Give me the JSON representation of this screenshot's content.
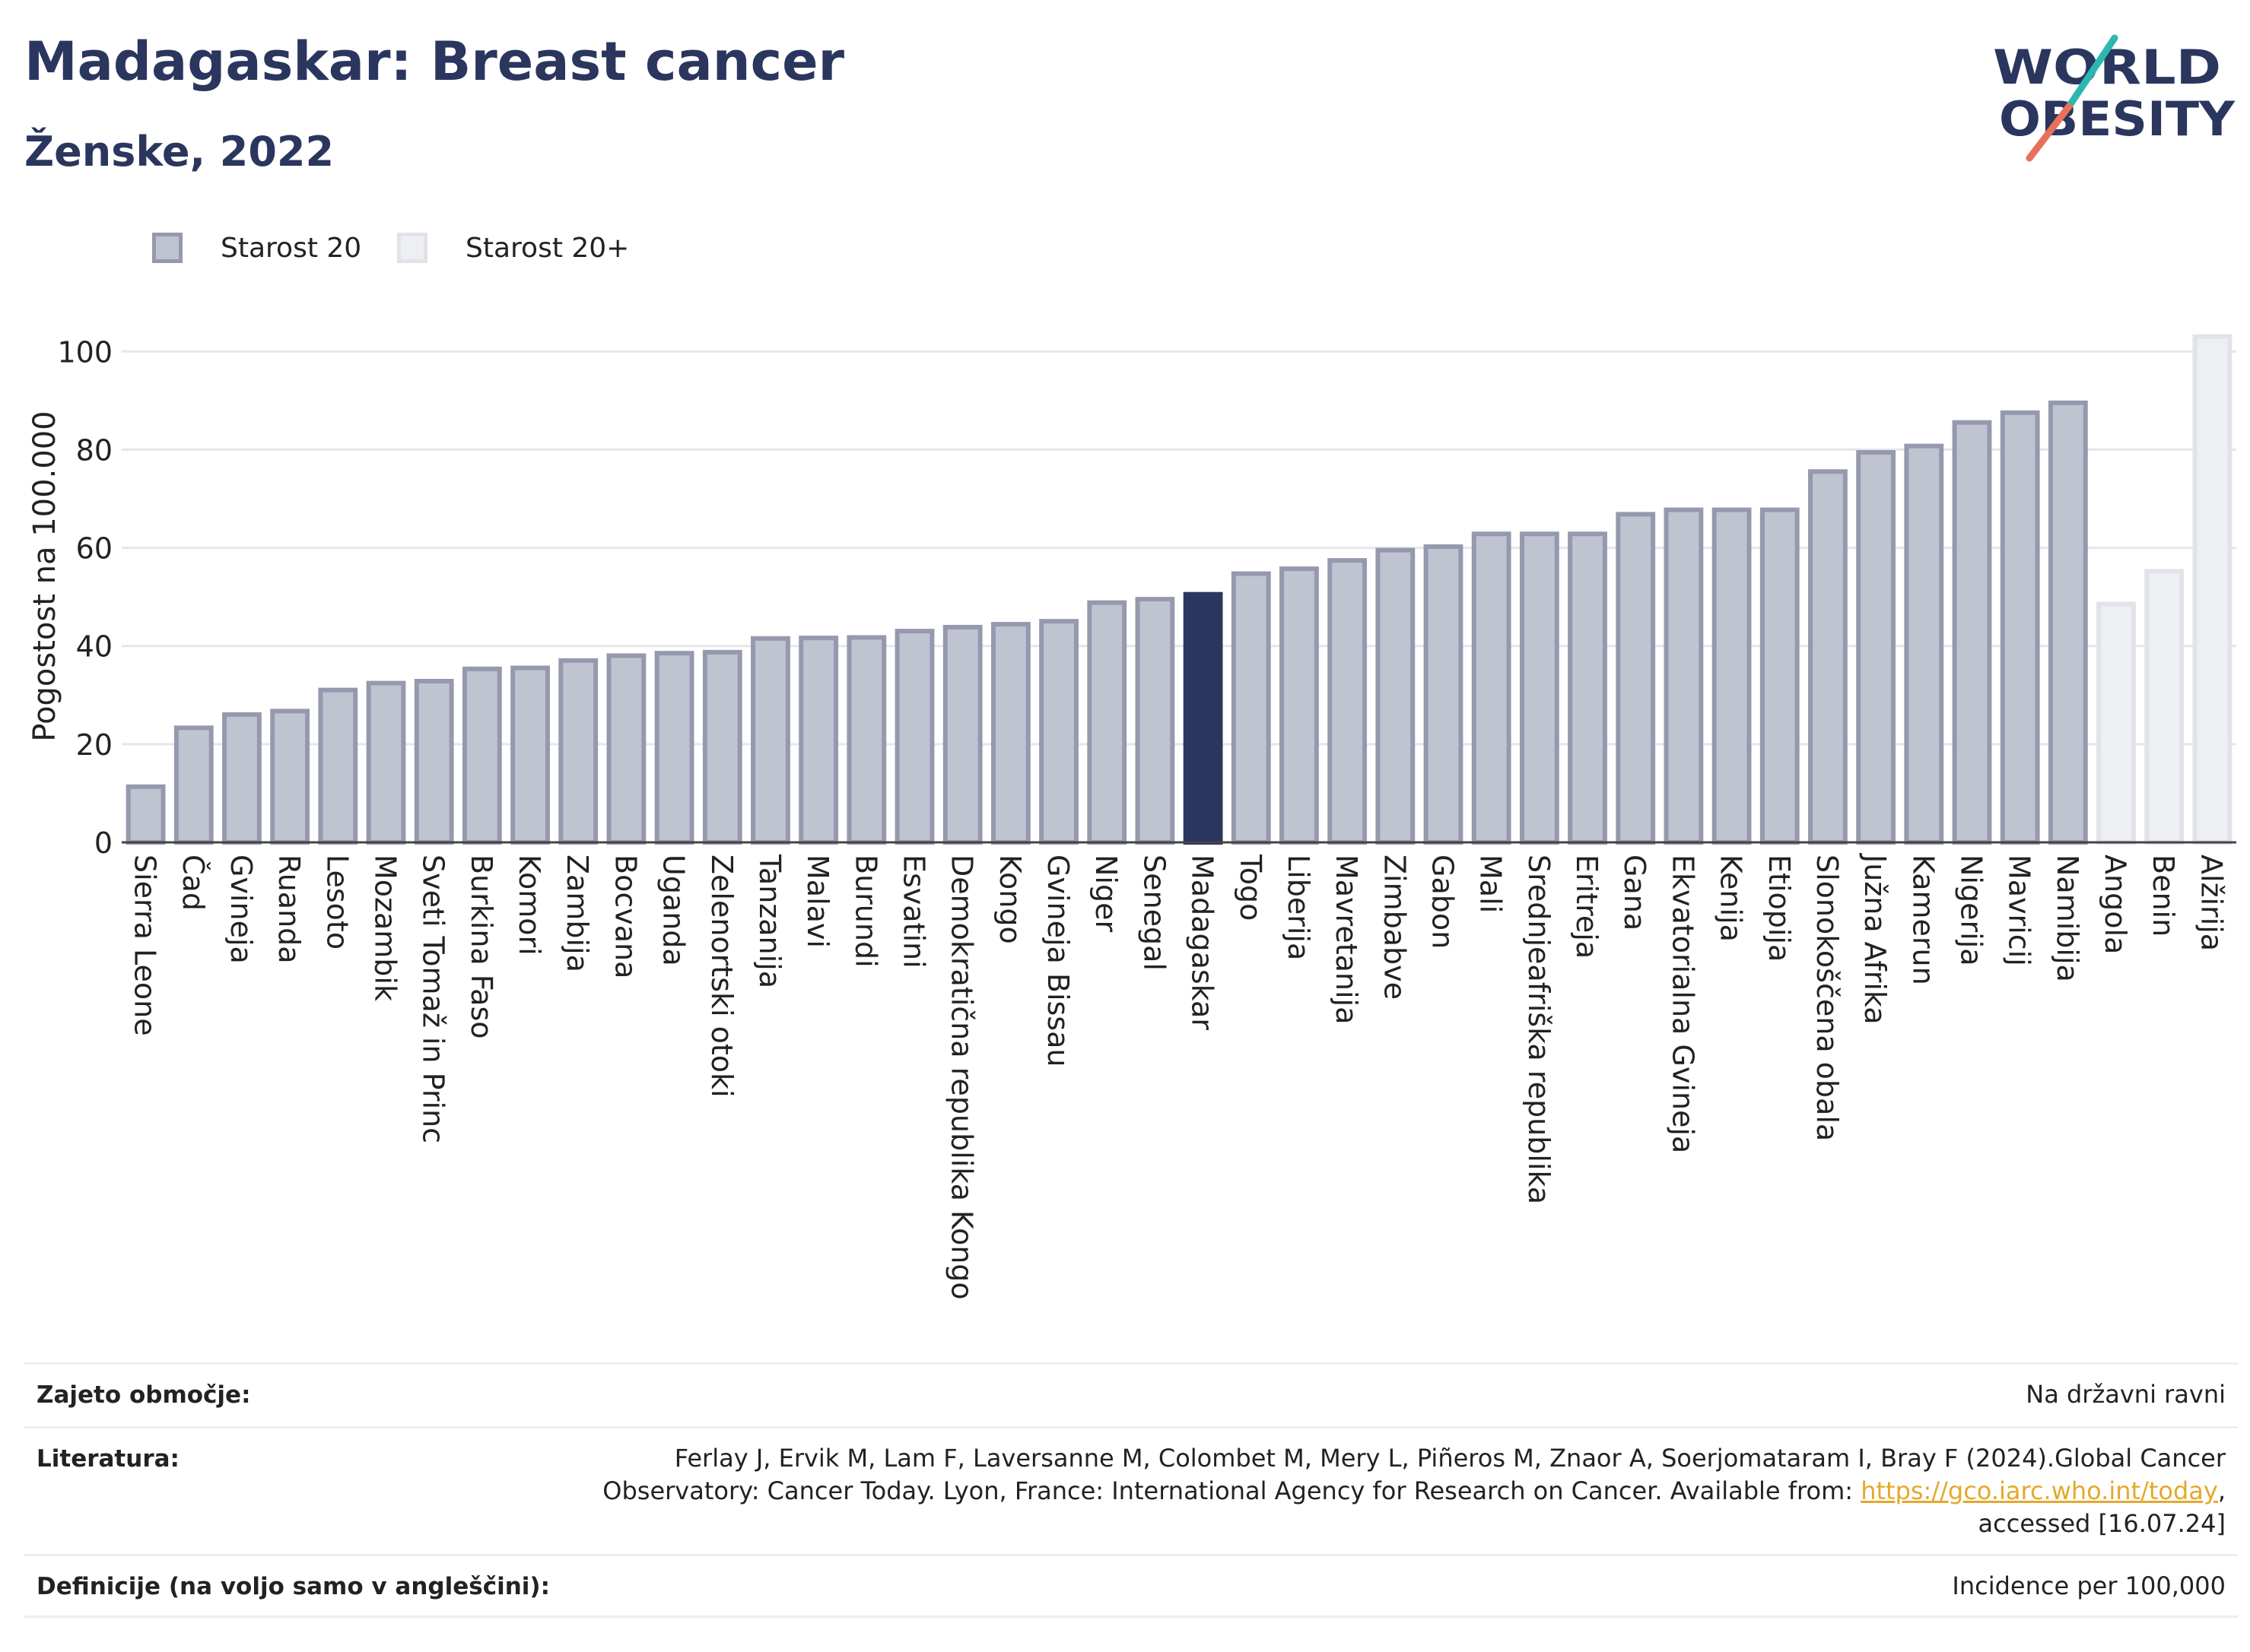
{
  "header": {
    "title": "Madagaskar: Breast cancer",
    "subtitle": "Ženske, 2022"
  },
  "logo": {
    "line1": "WORLD",
    "line2": "OBESITY",
    "accent_teal": "#2bb8b0",
    "accent_coral": "#e8715a",
    "text_color": "#2b365e"
  },
  "legend": {
    "items": [
      "Starost 20",
      "Starost 20+"
    ]
  },
  "colors": {
    "bar_fill": "#c0c3d0",
    "bar_stroke": "#9699ae",
    "highlight_fill": "#2b365e",
    "light_fill": "#eeeff3",
    "light_stroke": "#e2e3e9",
    "grid": "#e6e6ea"
  },
  "chart_data": {
    "type": "bar",
    "ylabel": "Pogostost na 100.000",
    "xlabel": "",
    "ylim": [
      0,
      105
    ],
    "yticks": [
      0,
      20,
      40,
      60,
      80,
      100
    ],
    "grid": true,
    "legend_position": "top-left",
    "highlight": "Madagaskar",
    "categories": [
      "Sierra Leone",
      "Čad",
      "Gvineja",
      "Ruanda",
      "Lesoto",
      "Mozambik",
      "Sveti Tomaž in Princ",
      "Burkina Faso",
      "Komori",
      "Zambija",
      "Bocvana",
      "Uganda",
      "Zelenortski otoki",
      "Tanzanija",
      "Malavi",
      "Burundi",
      "Esvatini",
      "Demokratična republika Kongo",
      "Kongo",
      "Gvineja Bissau",
      "Niger",
      "Senegal",
      "Madagaskar",
      "Togo",
      "Liberija",
      "Mavretanija",
      "Zimbabve",
      "Gabon",
      "Mali",
      "Srednjeafriška republika",
      "Eritreja",
      "Gana",
      "Ekvatorialna Gvineja",
      "Kenija",
      "Etiopija",
      "Slonokoščena obala",
      "Južna Afrika",
      "Kamerun",
      "Nigerija",
      "Mavricij",
      "Namibija",
      "Angola",
      "Benin",
      "Alžirija"
    ],
    "values": [
      11.8,
      23.8,
      26.5,
      27.2,
      31.5,
      32.9,
      33.3,
      35.8,
      36.0,
      37.5,
      38.5,
      39.0,
      39.2,
      42.0,
      42.1,
      42.2,
      43.5,
      44.3,
      44.9,
      45.5,
      49.3,
      50.0,
      51.0,
      55.2,
      56.2,
      57.9,
      60.0,
      60.7,
      63.3,
      63.3,
      63.3,
      67.3,
      68.2,
      68.2,
      68.2,
      76.0,
      79.9,
      81.2,
      86.0,
      88.0,
      90.0,
      49.0,
      55.7,
      103.5
    ],
    "series_membership": [
      "Starost 20",
      "Starost 20",
      "Starost 20",
      "Starost 20",
      "Starost 20",
      "Starost 20",
      "Starost 20",
      "Starost 20",
      "Starost 20",
      "Starost 20",
      "Starost 20",
      "Starost 20",
      "Starost 20",
      "Starost 20",
      "Starost 20",
      "Starost 20",
      "Starost 20",
      "Starost 20",
      "Starost 20",
      "Starost 20",
      "Starost 20",
      "Starost 20",
      "Starost 20",
      "Starost 20",
      "Starost 20",
      "Starost 20",
      "Starost 20",
      "Starost 20",
      "Starost 20",
      "Starost 20",
      "Starost 20",
      "Starost 20",
      "Starost 20",
      "Starost 20",
      "Starost 20",
      "Starost 20",
      "Starost 20",
      "Starost 20",
      "Starost 20",
      "Starost 20",
      "Starost 20",
      "Starost 20+",
      "Starost 20+",
      "Starost 20+"
    ]
  },
  "footer": {
    "coverage_label": "Zajeto območje:",
    "coverage_value": "Na državni ravni",
    "literature_label": "Literatura:",
    "literature_line1": "Ferlay J, Ervik M, Lam F, Laversanne M, Colombet M, Mery L, Piñeros M, Znaor A, Soerjomataram I, Bray F (2024).Global Cancer",
    "literature_line2_pre": "Observatory: Cancer Today. Lyon, France: International Agency for Research on Cancer. Available from: ",
    "literature_link": "https://gco.iarc.who.int/today",
    "literature_line2_post": ",",
    "literature_line3": "accessed [16.07.24]",
    "definitions_label": "Definicije (na voljo samo v angleščini):",
    "definitions_value": "Incidence per 100,000"
  }
}
